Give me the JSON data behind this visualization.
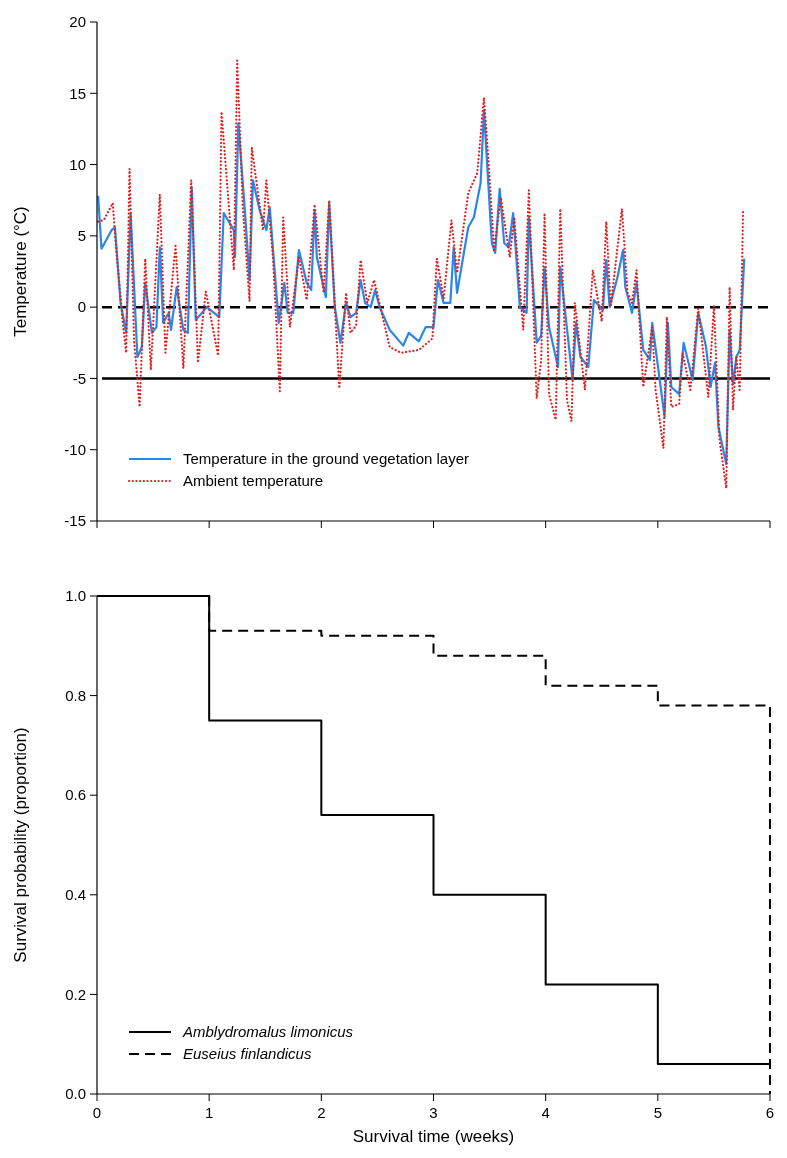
{
  "chart_data": [
    {
      "type": "line",
      "ylabel": "Temperature (°C)",
      "xlim": [
        0,
        6
      ],
      "ylim": [
        -15,
        20
      ],
      "xticks": [
        {
          "value": 0,
          "label": null
        },
        {
          "value": 1,
          "label": null
        },
        {
          "value": 2,
          "label": null
        },
        {
          "value": 3,
          "label": null
        },
        {
          "value": 4,
          "label": null
        },
        {
          "value": 5,
          "label": null
        },
        {
          "value": 6,
          "label": null
        }
      ],
      "yticks": [
        -15,
        -10,
        -5,
        0,
        5,
        10,
        15,
        20
      ],
      "tick_labels": "y",
      "legend": "bottom left",
      "ref_lines": [
        {
          "axis": "y",
          "value": 0,
          "color": "#000000",
          "line_style": "dashed"
        },
        {
          "axis": "y",
          "value": -5,
          "color": "#000000",
          "line_style": "solid"
        }
      ],
      "series": [
        {
          "name": "Temperature in the ground vegetation layer",
          "color": "#2a86e8",
          "line_style": "solid",
          "x": [
            0.01,
            0.04,
            0.13,
            0.16,
            0.21,
            0.26,
            0.3,
            0.36,
            0.4,
            0.43,
            0.49,
            0.53,
            0.56,
            0.59,
            0.64,
            0.66,
            0.71,
            0.77,
            0.81,
            0.845,
            0.88,
            0.98,
            1.09,
            1.13,
            1.22,
            1.23,
            1.26,
            1.32,
            1.36,
            1.39,
            1.45,
            1.51,
            1.54,
            1.62,
            1.67,
            1.7,
            1.75,
            1.8,
            1.87,
            1.91,
            1.94,
            1.96,
            2.04,
            2.07,
            2.12,
            2.17,
            2.22,
            2.26,
            2.31,
            2.35,
            2.39,
            2.44,
            2.48,
            2.52,
            2.61,
            2.73,
            2.78,
            2.87,
            2.93,
            3.0,
            3.04,
            3.09,
            3.15,
            3.18,
            3.21,
            3.31,
            3.36,
            3.42,
            3.45,
            3.48,
            3.52,
            3.55,
            3.59,
            3.63,
            3.67,
            3.71,
            3.77,
            3.83,
            3.85,
            3.92,
            3.96,
            3.99,
            4.03,
            4.11,
            4.13,
            4.24,
            4.27,
            4.31,
            4.38,
            4.43,
            4.51,
            4.54,
            4.57,
            4.64,
            4.69,
            4.71,
            4.77,
            4.81,
            4.87,
            4.93,
            4.95,
            5.06,
            5.09,
            5.12,
            5.19,
            5.23,
            5.31,
            5.36,
            5.43,
            5.47,
            5.51,
            5.54,
            5.61,
            5.64,
            5.67,
            5.7,
            5.73,
            5.77
          ],
          "values": [
            7.8,
            4.1,
            5.4,
            5.6,
            0.3,
            -1.8,
            6.6,
            -3.5,
            -2.8,
            1.7,
            -1.8,
            -1.4,
            4.2,
            -1.1,
            -0.4,
            -1.6,
            1.4,
            -1.6,
            -1.8,
            8.4,
            -0.9,
            0.0,
            -0.7,
            6.6,
            5.4,
            3.5,
            12.9,
            6.6,
            1.9,
            8.9,
            6.8,
            5.4,
            7.0,
            -1.1,
            1.7,
            -0.4,
            -0.4,
            4.0,
            1.7,
            1.2,
            6.8,
            3.5,
            0.7,
            7.3,
            0.0,
            -2.5,
            0.3,
            -0.7,
            -0.4,
            1.9,
            0.3,
            0.0,
            1.2,
            0.0,
            -1.6,
            -2.7,
            -1.8,
            -2.4,
            -1.4,
            -1.4,
            1.9,
            0.3,
            0.3,
            4.2,
            1.0,
            5.6,
            6.3,
            8.7,
            13.8,
            9.8,
            4.5,
            3.8,
            8.3,
            4.5,
            4.2,
            6.6,
            0.0,
            -0.4,
            6.3,
            -2.5,
            -2.0,
            2.8,
            -1.4,
            -4.2,
            2.8,
            -5.1,
            -1.1,
            -3.5,
            -4.2,
            0.5,
            -0.2,
            3.3,
            0.0,
            2.1,
            4.0,
            1.4,
            -0.4,
            1.7,
            -3.0,
            -3.7,
            -1.1,
            -7.7,
            -1.1,
            -5.6,
            -6.1,
            -2.5,
            -5.1,
            -0.4,
            -2.8,
            -5.6,
            -3.9,
            -8.4,
            -11.0,
            -1.6,
            -5.4,
            -3.5,
            -3.0,
            3.4
          ]
        },
        {
          "name": "Ambient temperature",
          "color": "#e02020",
          "line_style": "dotted",
          "x": [
            0.01,
            0.06,
            0.14,
            0.17,
            0.23,
            0.26,
            0.29,
            0.33,
            0.38,
            0.43,
            0.48,
            0.56,
            0.61,
            0.7,
            0.77,
            0.84,
            0.9,
            0.97,
            1.08,
            1.11,
            1.22,
            1.25,
            1.3,
            1.36,
            1.38,
            1.48,
            1.51,
            1.57,
            1.63,
            1.66,
            1.72,
            1.8,
            1.87,
            1.94,
            2.02,
            2.07,
            2.16,
            2.22,
            2.26,
            2.31,
            2.35,
            2.41,
            2.47,
            2.61,
            2.71,
            2.87,
            2.99,
            3.03,
            3.09,
            3.16,
            3.21,
            3.31,
            3.39,
            3.45,
            3.49,
            3.54,
            3.6,
            3.68,
            3.72,
            3.8,
            3.85,
            3.92,
            3.96,
            3.99,
            4.03,
            4.09,
            4.13,
            4.19,
            4.23,
            4.26,
            4.35,
            4.42,
            4.5,
            4.54,
            4.58,
            4.63,
            4.68,
            4.73,
            4.77,
            4.81,
            4.87,
            4.95,
            4.98,
            5.05,
            5.08,
            5.12,
            5.19,
            5.22,
            5.29,
            5.36,
            5.45,
            5.5,
            5.55,
            5.61,
            5.64,
            5.67,
            5.7,
            5.73,
            5.76
          ],
          "values": [
            6.0,
            6.1,
            7.3,
            4.2,
            -1.1,
            -3.2,
            9.7,
            -2.3,
            -7.0,
            3.4,
            -4.4,
            7.9,
            -3.2,
            4.3,
            -4.3,
            8.9,
            -3.9,
            1.1,
            -3.4,
            13.7,
            2.6,
            17.3,
            7.0,
            0.4,
            11.2,
            5.4,
            8.9,
            3.3,
            -5.9,
            6.3,
            -1.4,
            3.5,
            0.5,
            7.2,
            1.0,
            7.5,
            -5.7,
            1.0,
            -1.8,
            -1.3,
            3.3,
            0.3,
            1.9,
            -2.8,
            -3.2,
            -3.0,
            -2.2,
            3.4,
            0.6,
            6.1,
            2.4,
            8.0,
            9.4,
            14.7,
            10.3,
            4.0,
            7.7,
            3.5,
            6.3,
            -1.6,
            8.2,
            -6.4,
            -3.7,
            6.6,
            -6.1,
            -7.9,
            6.9,
            -6.5,
            -8.0,
            0.3,
            -5.8,
            2.6,
            -1.0,
            6.0,
            0.0,
            3.5,
            6.9,
            1.0,
            0.3,
            2.6,
            -5.6,
            -1.4,
            -5.8,
            -9.9,
            -0.7,
            -7.0,
            -6.8,
            -3.2,
            -5.8,
            -0.1,
            -6.3,
            0.1,
            -9.3,
            -12.7,
            1.4,
            -7.2,
            -3.5,
            -5.8,
            6.8
          ]
        }
      ]
    },
    {
      "type": "step",
      "xlabel": "Survival time (weeks)",
      "ylabel": "Survival probability (proportion)",
      "xlim": [
        0,
        6
      ],
      "ylim": [
        0,
        1
      ],
      "xticks": [
        0,
        1,
        2,
        3,
        4,
        5,
        6
      ],
      "yticks": [
        {
          "value": 0,
          "label": "0.0"
        },
        {
          "value": 0.2,
          "label": "0.2"
        },
        {
          "value": 0.4,
          "label": "0.4"
        },
        {
          "value": 0.6,
          "label": "0.6"
        },
        {
          "value": 0.8,
          "label": "0.8"
        },
        {
          "value": 1,
          "label": "1.0"
        }
      ],
      "legend": "bottom left",
      "series": [
        {
          "name": "Amblydromalus limonicus",
          "color": "#000000",
          "line_style": "solid",
          "x": [
            0,
            1,
            2,
            3,
            4,
            5,
            6
          ],
          "values": [
            1,
            0.75,
            0.56,
            0.4,
            0.22,
            0.06,
            0.06
          ]
        },
        {
          "name": "Euseius finlandicus",
          "color": "#000000",
          "line_style": "dashed",
          "x": [
            0,
            1,
            2,
            3,
            4,
            5,
            6
          ],
          "values": [
            1,
            0.93,
            0.92,
            0.88,
            0.82,
            0.78,
            0
          ]
        }
      ]
    }
  ]
}
